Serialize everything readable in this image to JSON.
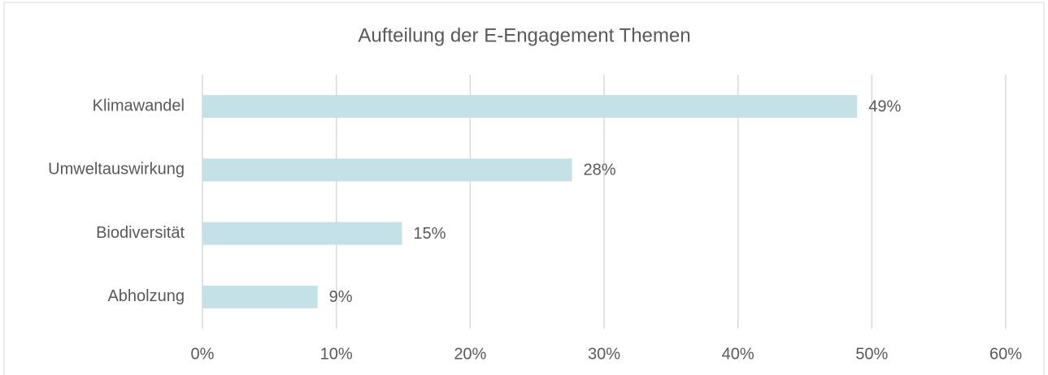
{
  "chart_data": {
    "type": "bar",
    "orientation": "horizontal",
    "title": "Aufteilung der E-Engagement Themen",
    "categories": [
      "Klimawandel",
      "Umweltauswirkung",
      "Biodiversität",
      "Abholzung"
    ],
    "values": [
      48.9,
      27.6,
      14.9,
      8.6
    ],
    "value_labels": [
      "49%",
      "28%",
      "15%",
      "9%"
    ],
    "color": "#c5e1e8",
    "xlim": [
      0,
      60
    ],
    "xticks": [
      {
        "value": 0,
        "label": "0%"
      },
      {
        "value": 10,
        "label": "10%"
      },
      {
        "value": 20,
        "label": "20%"
      },
      {
        "value": 30,
        "label": "30%"
      },
      {
        "value": 40,
        "label": "40%"
      },
      {
        "value": 50,
        "label": "50%"
      },
      {
        "value": 60,
        "label": "60%"
      }
    ],
    "grid": true
  }
}
